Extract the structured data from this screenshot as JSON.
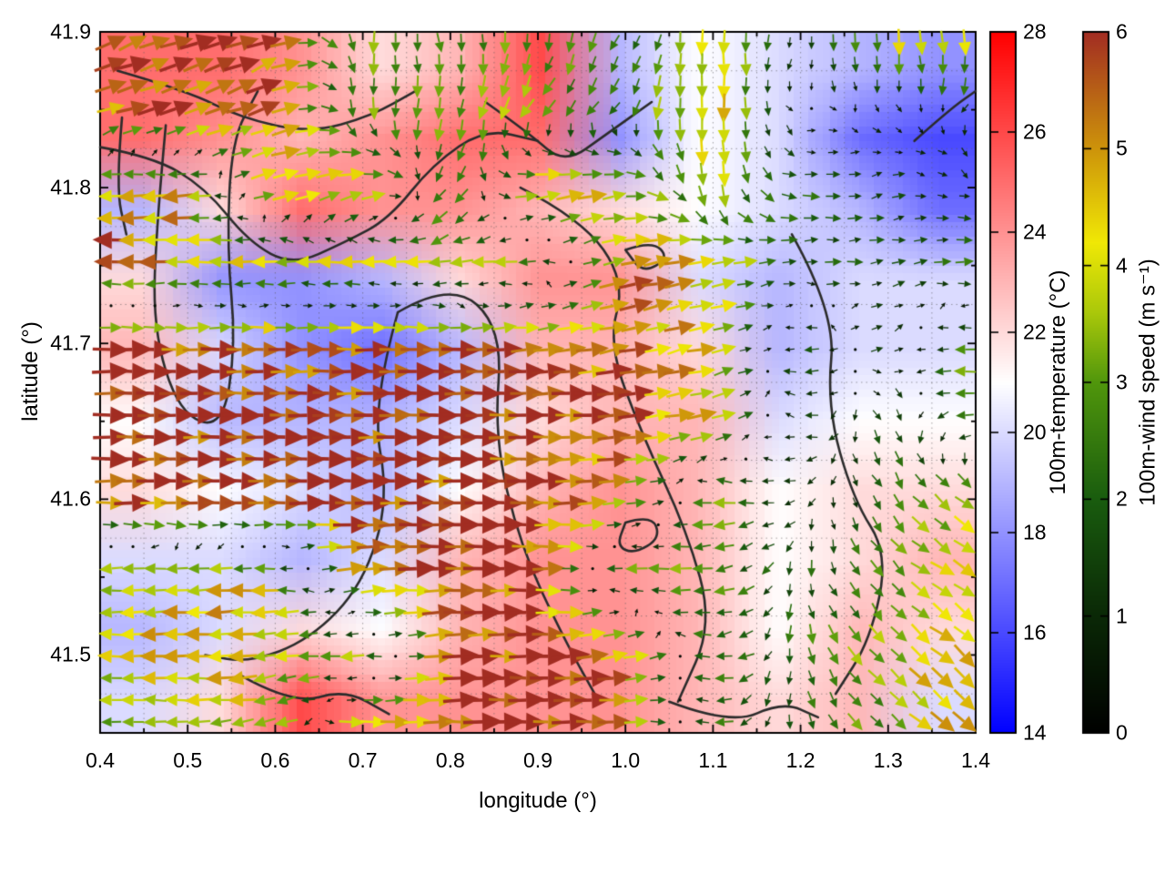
{
  "figure": {
    "background_color": "#ffffff",
    "x_axis": {
      "label": "longitude (°)",
      "range": [
        0.4,
        1.4
      ],
      "tick_values": [
        0.4,
        0.5,
        0.6,
        0.7,
        0.8,
        0.9,
        1.0,
        1.1,
        1.2,
        1.3,
        1.4
      ],
      "tick_labels": [
        "0.4",
        "0.5",
        "0.6",
        "0.7",
        "0.8",
        "0.9",
        "1.0",
        "1.1",
        "1.2",
        "1.3",
        "1.4"
      ]
    },
    "y_axis": {
      "label": "latitude (°)",
      "range": [
        41.45,
        41.9
      ],
      "tick_values": [
        41.5,
        41.6,
        41.7,
        41.8,
        41.9
      ],
      "tick_labels": [
        "41.5",
        "41.6",
        "41.7",
        "41.8",
        "41.9"
      ]
    },
    "colorbars": [
      {
        "id": "temperature",
        "label": "100m-temperature (°C)",
        "range": [
          14,
          28
        ],
        "tick_values": [
          14,
          16,
          18,
          20,
          22,
          24,
          26,
          28
        ],
        "tick_labels": [
          "14",
          "16",
          "18",
          "20",
          "22",
          "24",
          "26",
          "28"
        ],
        "stops": [
          [
            14,
            "#0000ff"
          ],
          [
            21,
            "#ffffff"
          ],
          [
            28,
            "#ff0000"
          ]
        ]
      },
      {
        "id": "wind_speed",
        "label": "100m-wind speed (m s⁻¹)",
        "range": [
          0,
          6
        ],
        "tick_values": [
          0,
          1,
          2,
          3,
          4,
          5,
          6
        ],
        "tick_labels": [
          "0",
          "1",
          "2",
          "3",
          "4",
          "5",
          "6"
        ],
        "stops": [
          [
            0,
            "#000000"
          ],
          [
            1,
            "#0a2806"
          ],
          [
            2,
            "#195c0e"
          ],
          [
            3,
            "#50960c"
          ],
          [
            3.6,
            "#aac80a"
          ],
          [
            4.2,
            "#f0e805"
          ],
          [
            5,
            "#cd940a"
          ],
          [
            6,
            "#a22d22"
          ]
        ]
      }
    ],
    "contour_line_color": "#2b2b2b",
    "grid": {
      "style": "dotted",
      "step_deg": 0.05,
      "color": "#5a5a5a"
    }
  },
  "chart_data": {
    "type": "heatmap+quiver",
    "description": "Map of 100m wind vectors (arrows colored by wind speed, 0-6 m/s) over a 100m temperature field (blue-white-red, 14-28 °C) with black terrain contour lines, over longitude 0.4-1.4° and latitude 41.45-41.9°. Values below are estimates read from the figure on a coarse grid.",
    "lon_range": [
      0.4,
      1.4
    ],
    "lat_range": [
      41.45,
      41.9
    ],
    "grid_lon": [
      0.4,
      0.5,
      0.6,
      0.7,
      0.8,
      0.9,
      1.0,
      1.1,
      1.2,
      1.3,
      1.4
    ],
    "grid_lat": [
      41.9,
      41.85,
      41.8,
      41.75,
      41.7,
      41.65,
      41.6,
      41.55,
      41.5,
      41.45
    ],
    "temperature_c": [
      [
        25,
        25,
        24,
        22,
        23,
        26,
        19,
        21,
        20,
        19,
        18
      ],
      [
        25,
        24,
        23,
        24,
        25,
        25,
        18,
        21,
        20,
        17,
        16
      ],
      [
        19,
        22,
        25,
        24,
        24,
        23,
        22,
        21,
        20,
        19,
        17
      ],
      [
        22,
        18,
        18,
        19,
        22,
        24,
        24,
        20,
        19,
        20,
        20
      ],
      [
        23,
        20,
        18,
        17,
        19,
        23,
        23,
        22,
        19,
        20,
        20
      ],
      [
        21,
        19,
        19,
        19,
        20,
        22,
        23,
        23,
        20,
        21,
        21
      ],
      [
        22,
        21,
        20,
        19,
        21,
        23,
        24,
        23,
        21,
        22,
        22
      ],
      [
        20,
        20,
        19,
        20,
        23,
        24,
        24,
        23,
        21,
        22,
        23
      ],
      [
        19,
        20,
        22,
        21,
        23,
        24,
        24,
        23,
        21,
        23,
        22
      ],
      [
        20,
        22,
        26,
        24,
        24,
        24,
        24,
        23,
        22,
        23,
        20
      ]
    ],
    "wind_u_ms": [
      [
        5.5,
        5.5,
        5.0,
        0.0,
        0.5,
        0.0,
        -1.0,
        0.0,
        -0.5,
        0.0,
        0.5
      ],
      [
        5.5,
        5.5,
        5.0,
        0.0,
        -0.5,
        -2.0,
        -1.0,
        0.0,
        0.3,
        0.3,
        -0.5
      ],
      [
        -4.0,
        -4.5,
        4.5,
        5.0,
        -2.0,
        5.0,
        4.0,
        0.0,
        2.0,
        1.5,
        1.0
      ],
      [
        -6.0,
        -4.5,
        -4.5,
        -4.0,
        -4.0,
        -3.0,
        5.0,
        4.0,
        2.0,
        1.5,
        2.5
      ],
      [
        6.0,
        6.0,
        6.0,
        6.0,
        6.0,
        5.5,
        5.0,
        4.0,
        -2.0,
        1.5,
        -3.5
      ],
      [
        6.0,
        6.0,
        6.0,
        6.0,
        6.0,
        6.0,
        5.5,
        4.0,
        -2.0,
        1.0,
        -3.5
      ],
      [
        6.0,
        6.0,
        6.0,
        6.0,
        6.0,
        6.0,
        4.5,
        -3.5,
        -1.0,
        1.5,
        3.5
      ],
      [
        -4.0,
        -4.5,
        -4.0,
        5.0,
        6.0,
        5.5,
        -3.5,
        -3.0,
        0.0,
        2.0,
        4.0
      ],
      [
        -4.0,
        -4.5,
        -4.0,
        -3.5,
        5.5,
        6.0,
        5.0,
        -3.0,
        0.3,
        2.5,
        4.0
      ],
      [
        -3.0,
        -4.0,
        -4.0,
        5.5,
        6.0,
        6.0,
        4.5,
        -2.5,
        0.5,
        2.5,
        4.0
      ]
    ],
    "wind_v_ms": [
      [
        2.0,
        2.0,
        2.0,
        -3.0,
        -3.0,
        -3.0,
        -2.0,
        -4.0,
        -1.0,
        -4.0,
        -4.5
      ],
      [
        1.5,
        1.5,
        2.0,
        -3.0,
        -3.5,
        -3.0,
        -2.0,
        -4.5,
        -0.3,
        -0.5,
        -1.0
      ],
      [
        0.0,
        -0.5,
        1.0,
        1.5,
        -3.0,
        1.0,
        0.5,
        -4.0,
        0.0,
        0.3,
        -0.5
      ],
      [
        0.0,
        0.0,
        0.0,
        0.0,
        -0.5,
        0.0,
        1.0,
        1.0,
        0.0,
        0.3,
        0.0
      ],
      [
        0.0,
        0.0,
        0.0,
        0.0,
        0.0,
        0.5,
        1.0,
        1.0,
        0.0,
        0.5,
        0.0
      ],
      [
        0.0,
        0.0,
        0.0,
        0.0,
        0.0,
        0.0,
        0.5,
        1.0,
        0.0,
        -1.5,
        0.0
      ],
      [
        0.0,
        0.0,
        0.0,
        0.0,
        0.0,
        0.0,
        0.5,
        0.0,
        -0.5,
        -2.0,
        -2.5
      ],
      [
        0.0,
        -0.5,
        0.0,
        0.5,
        0.0,
        0.0,
        0.0,
        -0.5,
        -2.0,
        -2.0,
        -2.5
      ],
      [
        0.0,
        0.0,
        -0.5,
        0.0,
        0.5,
        0.0,
        1.0,
        0.0,
        -2.5,
        -2.5,
        -3.0
      ],
      [
        0.0,
        0.0,
        -1.0,
        0.0,
        0.0,
        0.0,
        0.0,
        0.0,
        -2.0,
        -2.0,
        -3.0
      ]
    ],
    "contours_lonlat": [
      [
        [
          0.42,
          41.875
        ],
        [
          0.5,
          41.862
        ],
        [
          0.56,
          41.845
        ],
        [
          0.64,
          41.835
        ],
        [
          0.71,
          41.846
        ],
        [
          0.76,
          41.862
        ]
      ],
      [
        [
          0.4,
          41.826
        ],
        [
          0.46,
          41.82
        ],
        [
          0.52,
          41.8
        ],
        [
          0.57,
          41.765
        ],
        [
          0.62,
          41.75
        ],
        [
          0.68,
          41.765
        ],
        [
          0.73,
          41.78
        ],
        [
          0.78,
          41.815
        ],
        [
          0.84,
          41.838
        ],
        [
          0.9,
          41.83
        ]
      ],
      [
        [
          0.475,
          41.84
        ],
        [
          0.465,
          41.78
        ],
        [
          0.46,
          41.71
        ],
        [
          0.49,
          41.655
        ],
        [
          0.54,
          41.645
        ],
        [
          0.555,
          41.7
        ],
        [
          0.545,
          41.76
        ],
        [
          0.55,
          41.83
        ],
        [
          0.58,
          41.862
        ]
      ],
      [
        [
          0.74,
          41.72
        ],
        [
          0.71,
          41.66
        ],
        [
          0.73,
          41.6
        ],
        [
          0.7,
          41.545
        ],
        [
          0.64,
          41.51
        ],
        [
          0.57,
          41.495
        ],
        [
          0.52,
          41.5
        ]
      ],
      [
        [
          0.74,
          41.72
        ],
        [
          0.8,
          41.74
        ],
        [
          0.86,
          41.71
        ],
        [
          0.85,
          41.64
        ],
        [
          0.88,
          41.57
        ],
        [
          0.93,
          41.51
        ],
        [
          0.97,
          41.47
        ]
      ],
      [
        [
          0.88,
          41.8
        ],
        [
          0.95,
          41.78
        ],
        [
          1.0,
          41.74
        ],
        [
          0.98,
          41.7
        ],
        [
          1.02,
          41.64
        ],
        [
          1.07,
          41.58
        ],
        [
          1.1,
          41.52
        ],
        [
          1.06,
          41.47
        ]
      ],
      [
        [
          0.84,
          41.855
        ],
        [
          0.89,
          41.835
        ],
        [
          0.93,
          41.815
        ],
        [
          0.98,
          41.835
        ],
        [
          1.03,
          41.855
        ]
      ],
      [
        [
          1.19,
          41.77
        ],
        [
          1.24,
          41.72
        ],
        [
          1.23,
          41.66
        ],
        [
          1.26,
          41.6
        ],
        [
          1.3,
          41.565
        ],
        [
          1.28,
          41.51
        ],
        [
          1.24,
          41.475
        ]
      ],
      [
        [
          0.56,
          41.487
        ],
        [
          0.62,
          41.468
        ],
        [
          0.68,
          41.478
        ],
        [
          0.73,
          41.462
        ]
      ],
      [
        [
          1.0,
          41.76
        ],
        [
          1.03,
          41.766
        ],
        [
          1.05,
          41.755
        ],
        [
          1.02,
          41.745
        ],
        [
          1.0,
          41.76
        ]
      ],
      [
        [
          1.33,
          41.83
        ],
        [
          1.37,
          41.85
        ],
        [
          1.4,
          41.862
        ]
      ],
      [
        [
          1.0,
          41.585
        ],
        [
          1.03,
          41.59
        ],
        [
          1.04,
          41.575
        ],
        [
          1.01,
          41.565
        ],
        [
          0.99,
          41.57
        ],
        [
          1.0,
          41.585
        ]
      ],
      [
        [
          1.05,
          41.47
        ],
        [
          1.12,
          41.455
        ],
        [
          1.18,
          41.47
        ],
        [
          1.22,
          41.46
        ]
      ],
      [
        [
          0.425,
          41.845
        ],
        [
          0.418,
          41.8
        ],
        [
          0.43,
          41.77
        ]
      ]
    ],
    "layout_hints": {
      "arrow_grid_cols": 40,
      "arrow_grid_rows": 32,
      "legend_position": "two vertical colorbars right of plot",
      "grid_on": true
    }
  }
}
